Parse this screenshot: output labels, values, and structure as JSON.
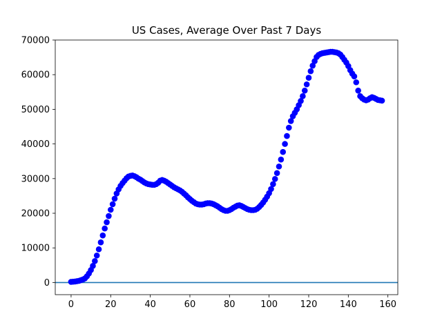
{
  "chart_data": {
    "type": "scatter",
    "title": "US Cases, Average Over Past 7 Days",
    "xlabel": "",
    "ylabel": "",
    "xlim": [
      -8,
      165
    ],
    "ylim": [
      -3500,
      70000
    ],
    "xticks": [
      0,
      20,
      40,
      60,
      80,
      100,
      120,
      140,
      160
    ],
    "yticks": [
      0,
      10000,
      20000,
      30000,
      40000,
      50000,
      60000,
      70000
    ],
    "grid": false,
    "legend": "none",
    "marker_color": "#0000ff",
    "baseline": {
      "y": 0,
      "color": "#1f77b4"
    },
    "series": [
      {
        "x": [
          0,
          1,
          2,
          3,
          4,
          5,
          6,
          7,
          8,
          9,
          10,
          11,
          12,
          13,
          14,
          15,
          16,
          17,
          18,
          19,
          20,
          21,
          22,
          23,
          24,
          25,
          26,
          27,
          28,
          29,
          30,
          31,
          32,
          33,
          34,
          35,
          36,
          37,
          38,
          39,
          40,
          41,
          42,
          43,
          44,
          45,
          46,
          47,
          48,
          49,
          50,
          51,
          52,
          53,
          54,
          55,
          56,
          57,
          58,
          59,
          60,
          61,
          62,
          63,
          64,
          65,
          66,
          67,
          68,
          69,
          70,
          71,
          72,
          73,
          74,
          75,
          76,
          77,
          78,
          79,
          80,
          81,
          82,
          83,
          84,
          85,
          86,
          87,
          88,
          89,
          90,
          91,
          92,
          93,
          94,
          95,
          96,
          97,
          98,
          99,
          100,
          101,
          102,
          103,
          104,
          105,
          106,
          107,
          108,
          109,
          110,
          111,
          112,
          113,
          114,
          115,
          116,
          117,
          118,
          119,
          120,
          121,
          122,
          123,
          124,
          125,
          126,
          127,
          128,
          129,
          130,
          131,
          132,
          133,
          134,
          135,
          136,
          137,
          138,
          139,
          140,
          141,
          142,
          143,
          144,
          145,
          146,
          147,
          148,
          149,
          150,
          151,
          152,
          153,
          154,
          155,
          156,
          157
        ],
        "y": [
          200,
          250,
          300,
          400,
          500,
          700,
          900,
          1200,
          1800,
          2600,
          3600,
          4800,
          6200,
          7800,
          9600,
          11600,
          13600,
          15600,
          17400,
          19200,
          21000,
          22600,
          24200,
          25700,
          26900,
          27900,
          28700,
          29400,
          30100,
          30600,
          30800,
          30900,
          30700,
          30400,
          30000,
          29700,
          29300,
          28900,
          28600,
          28400,
          28300,
          28200,
          28200,
          28400,
          28800,
          29400,
          29600,
          29400,
          29100,
          28700,
          28300,
          27900,
          27500,
          27200,
          26900,
          26600,
          26200,
          25700,
          25200,
          24600,
          24100,
          23600,
          23200,
          22800,
          22600,
          22500,
          22500,
          22600,
          22800,
          22900,
          22900,
          22800,
          22600,
          22300,
          22000,
          21600,
          21200,
          20900,
          20700,
          20700,
          20900,
          21200,
          21600,
          21900,
          22200,
          22300,
          22100,
          21800,
          21500,
          21200,
          21000,
          20900,
          20900,
          21000,
          21300,
          21800,
          22400,
          23100,
          23900,
          24800,
          25800,
          27000,
          28400,
          29900,
          31600,
          33500,
          35500,
          37700,
          40000,
          42300,
          44700,
          46600,
          48000,
          49000,
          50000,
          51200,
          52400,
          53800,
          55400,
          57200,
          59100,
          61000,
          62600,
          63900,
          65100,
          65700,
          66000,
          66200,
          66300,
          66400,
          66500,
          66600,
          66600,
          66500,
          66400,
          66200,
          65800,
          65100,
          64300,
          63500,
          62500,
          61300,
          60300,
          59500,
          57800,
          55400,
          53800,
          53200,
          52800,
          52600,
          52800,
          53200,
          53500,
          53300,
          53000,
          52700,
          52600,
          52500
        ]
      }
    ]
  }
}
